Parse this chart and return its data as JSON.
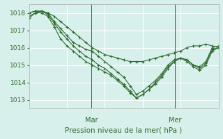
{
  "background_color": "#d8f0ec",
  "grid_color": "#ffffff",
  "line_color": "#2d6a2d",
  "marker": "+",
  "xlabel": "Pression niveau de la mer( hPa )",
  "ylim": [
    1012.5,
    1018.5
  ],
  "yticks": [
    1013,
    1014,
    1015,
    1016,
    1017,
    1018
  ],
  "day_labels": [
    "Mar",
    "Mer"
  ],
  "day_positions": [
    0.33,
    0.77
  ],
  "series": [
    [
      1017.8,
      1018.0,
      1018.1,
      1018.0,
      1017.8,
      1017.5,
      1017.2,
      1016.9,
      1016.6,
      1016.3,
      1016.0,
      1015.8,
      1015.6,
      1015.5,
      1015.4,
      1015.3,
      1015.2,
      1015.2,
      1015.2,
      1015.3,
      1015.4,
      1015.5,
      1015.6,
      1015.7,
      1015.8,
      1016.0,
      1016.1,
      1016.1,
      1016.2,
      1016.1,
      1016.0
    ],
    [
      1018.0,
      1018.1,
      1018.1,
      1018.0,
      1017.5,
      1017.1,
      1016.7,
      1016.3,
      1016.1,
      1015.9,
      1015.8,
      1015.5,
      1015.2,
      1014.9,
      1014.6,
      1014.3,
      1013.8,
      1013.3,
      1013.5,
      1013.8,
      1014.1,
      1014.5,
      1015.0,
      1015.3,
      1015.4,
      1015.3,
      1015.0,
      1014.9,
      1015.2,
      1016.0,
      1016.1
    ],
    [
      1018.0,
      1018.1,
      1018.1,
      1017.9,
      1017.4,
      1016.9,
      1016.5,
      1016.1,
      1015.8,
      1015.5,
      1015.3,
      1015.0,
      1014.8,
      1014.5,
      1014.2,
      1013.9,
      1013.5,
      1013.1,
      1013.3,
      1013.6,
      1013.9,
      1014.3,
      1014.8,
      1015.2,
      1015.4,
      1015.3,
      1015.0,
      1014.8,
      1015.1,
      1015.9,
      1016.0
    ],
    [
      1017.7,
      1018.0,
      1018.0,
      1017.8,
      1017.2,
      1016.5,
      1016.1,
      1015.8,
      1015.5,
      1015.2,
      1015.0,
      1014.8,
      1014.6,
      1014.4,
      1014.1,
      1013.8,
      1013.4,
      1013.1,
      1013.3,
      1013.6,
      1014.0,
      1014.4,
      1014.9,
      1015.2,
      1015.4,
      1015.2,
      1014.9,
      1014.7,
      1015.0,
      1015.8,
      1016.0
    ]
  ]
}
